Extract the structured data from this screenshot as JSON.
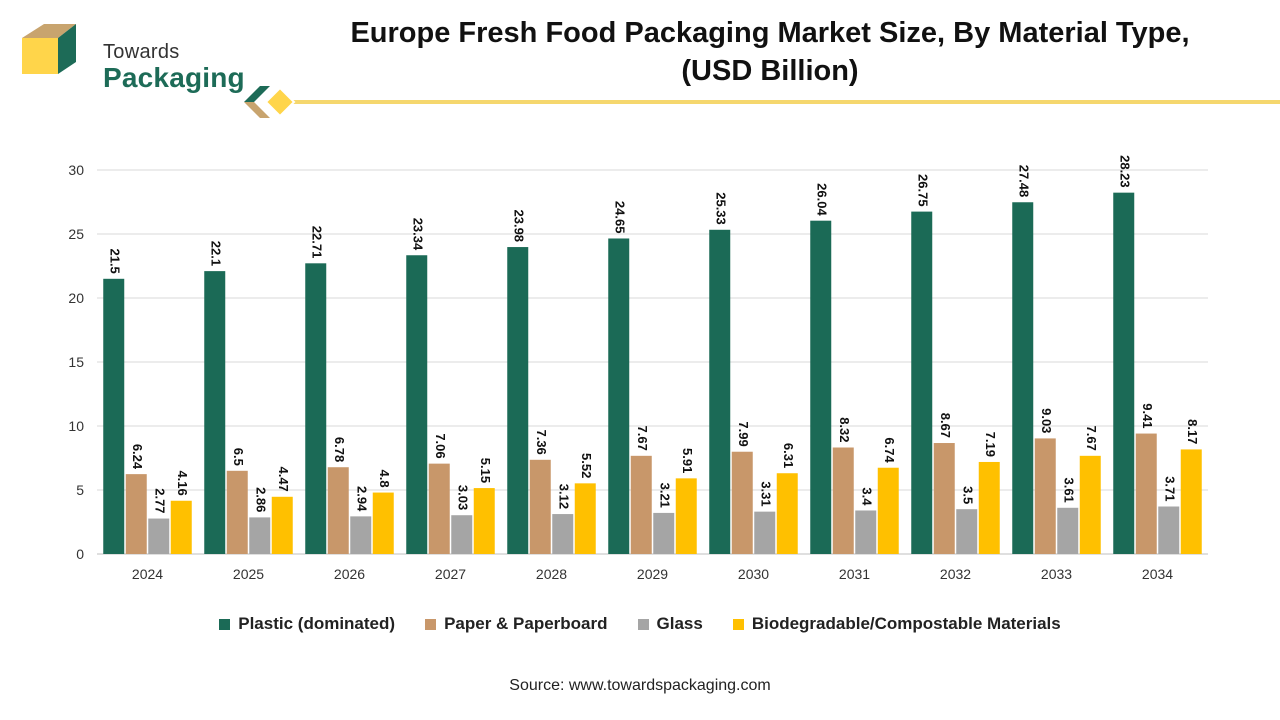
{
  "brand": {
    "line1": "Towards",
    "line2": "Packaging"
  },
  "header": {
    "title_line1": "Europe Fresh Food Packaging Market Size, By Material Type,",
    "title_line2": "(USD Billion)"
  },
  "footer": {
    "source": "Source: www.towardspackaging.com"
  },
  "colors": {
    "brand_green": "#1d6b57",
    "brand_gold": "#c8a46e",
    "brand_yellow": "#ffd54a",
    "divider_yellow": "#f5d76e"
  },
  "chart_data": {
    "type": "bar",
    "title": "Europe Fresh Food Packaging Market Size, By Material Type, (USD Billion)",
    "xlabel": "",
    "ylabel": "",
    "ylim": [
      0,
      30
    ],
    "yticks": [
      0,
      5,
      10,
      15,
      20,
      25,
      30
    ],
    "grid": true,
    "legend_position": "bottom",
    "categories": [
      "2024",
      "2025",
      "2026",
      "2027",
      "2028",
      "2029",
      "2030",
      "2031",
      "2032",
      "2033",
      "2034"
    ],
    "series": [
      {
        "name": "Plastic (dominated)",
        "color": "#1b6a56",
        "values": [
          21.5,
          22.1,
          22.71,
          23.34,
          23.98,
          24.65,
          25.33,
          26.04,
          26.75,
          27.48,
          28.23
        ],
        "labels": [
          "21.5",
          "22.1",
          "22.71",
          "23.34",
          "23.98",
          "24.65",
          "25.33",
          "26.04",
          "26.75",
          "27.48",
          "28.23"
        ]
      },
      {
        "name": "Paper & Paperboard",
        "color": "#c8976a",
        "values": [
          6.24,
          6.5,
          6.78,
          7.06,
          7.36,
          7.67,
          7.99,
          8.32,
          8.67,
          9.03,
          9.41
        ],
        "labels": [
          "6.24",
          "6.5",
          "6.78",
          "7.06",
          "7.36",
          "7.67",
          "7.99",
          "8.32",
          "8.67",
          "9.03",
          "9.41"
        ]
      },
      {
        "name": "Glass",
        "color": "#a5a5a5",
        "values": [
          2.77,
          2.86,
          2.94,
          3.03,
          3.12,
          3.21,
          3.31,
          3.4,
          3.5,
          3.61,
          3.71
        ],
        "labels": [
          "2.77",
          "2.86",
          "2.94",
          "3.03",
          "3.12",
          "3.21",
          "3.31",
          "3.4",
          "3.5",
          "3.61",
          "3.71"
        ]
      },
      {
        "name": "Biodegradable/Compostable Materials",
        "color": "#ffc000",
        "values": [
          4.16,
          4.47,
          4.8,
          5.15,
          5.52,
          5.91,
          6.31,
          6.74,
          7.19,
          7.67,
          8.17
        ],
        "labels": [
          "4.16",
          "4.47",
          "4.8",
          "5.15",
          "5.52",
          "5.91",
          "6.31",
          "6.74",
          "7.19",
          "7.67",
          "8.17"
        ]
      }
    ]
  }
}
